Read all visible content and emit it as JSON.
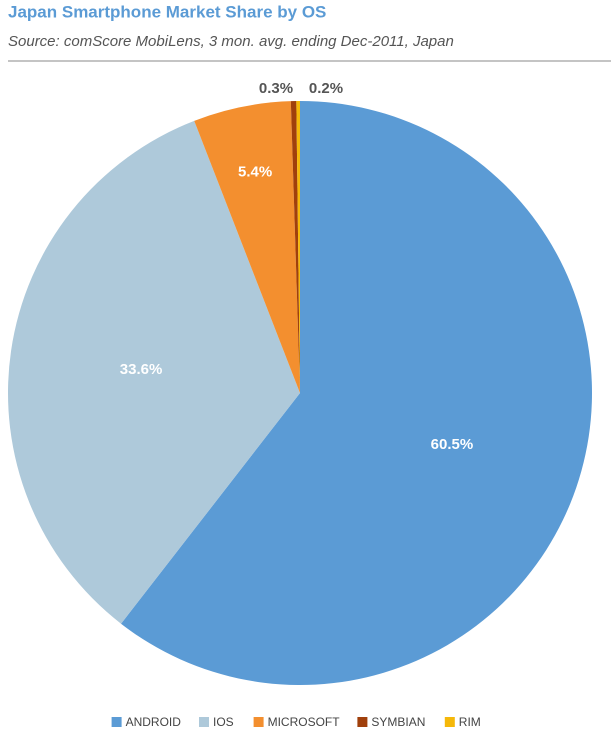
{
  "chart_data": {
    "type": "pie",
    "title": "Japan Smartphone Market Share by OS",
    "subtitle": "Source: comScore MobiLens, 3 mon. avg. ending Dec-2011, Japan",
    "categories": [
      "ANDROID",
      "IOS",
      "MICROSOFT",
      "SYMBIAN",
      "RIM"
    ],
    "values": [
      60.5,
      33.6,
      5.4,
      0.3,
      0.2
    ],
    "value_labels": [
      "60.5%",
      "33.6%",
      "5.4%",
      "0.3%",
      "0.2%"
    ],
    "colors": [
      "#5b9bd5",
      "#aec9da",
      "#f38f2f",
      "#a0400c",
      "#f5b80a"
    ],
    "legend": "bottom"
  }
}
